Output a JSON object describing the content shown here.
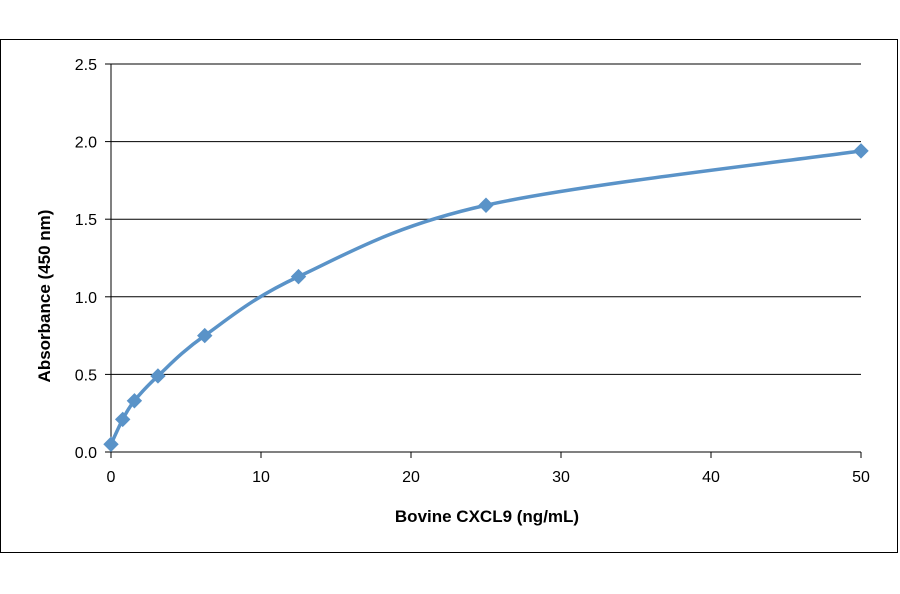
{
  "chart_data": {
    "type": "scatter",
    "title": "",
    "xlabel": "Bovine CXCL9 (ng/mL)",
    "ylabel": "Absorbance  (450  nm)",
    "xlim": [
      0,
      50
    ],
    "ylim": [
      0,
      2.5
    ],
    "x_ticks": [
      "0",
      "10",
      "20",
      "30",
      "40",
      "50"
    ],
    "y_ticks": [
      "0.0",
      "0.5",
      "1.0",
      "1.5",
      "2.0",
      "2.5"
    ],
    "grid": "horizontal",
    "legend": "none",
    "smooth_line": true,
    "series": [
      {
        "x": [
          0,
          0.78,
          1.56,
          3.13,
          6.25,
          12.5,
          25,
          50
        ],
        "y": [
          0.05,
          0.21,
          0.33,
          0.49,
          0.75,
          1.13,
          1.59,
          1.94
        ]
      }
    ]
  },
  "colors": {
    "series": "#5a93c8",
    "marker": "#5a93c8",
    "grid": "#000000"
  }
}
